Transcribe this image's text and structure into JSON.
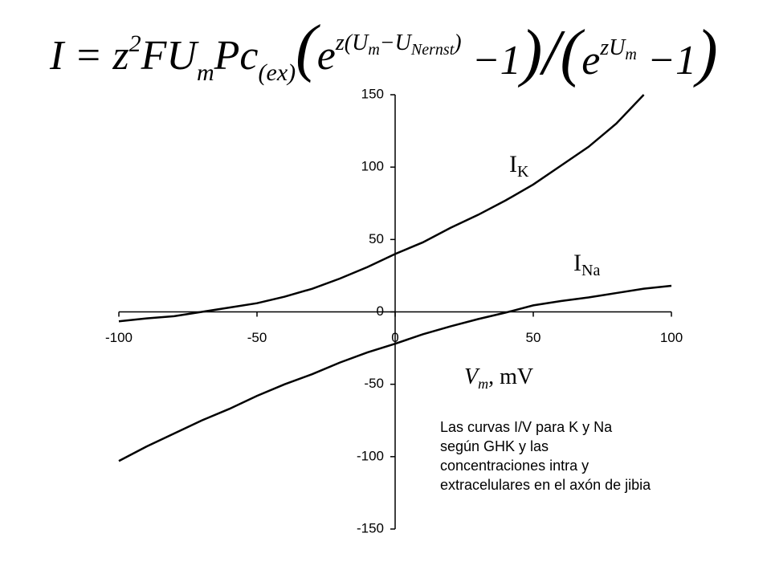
{
  "formula": [
    "I",
    " = ",
    "z",
    "2",
    "FU",
    "m",
    "Pc",
    "(ex)",
    "(",
    "e",
    "z(U",
    "m",
    "−U",
    "Nernst",
    ")",
    " −1",
    ")/(",
    "e",
    "zU",
    "m",
    " −1",
    ")"
  ],
  "chart_data": {
    "type": "line",
    "x": [
      -100,
      -90,
      -80,
      -70,
      -60,
      -50,
      -40,
      -30,
      -20,
      -10,
      0,
      10,
      20,
      30,
      40,
      50,
      60,
      70,
      80,
      90,
      100
    ],
    "series": [
      {
        "name": [
          "I",
          "K"
        ],
        "color": "#000000",
        "values": [
          -6.5,
          -4.5,
          -3,
          0,
          3,
          6,
          10.5,
          16,
          23,
          31,
          40,
          48,
          58,
          67,
          77,
          88,
          101,
          114,
          130,
          150,
          null
        ]
      },
      {
        "name": [
          "I",
          "Na"
        ],
        "color": "#000000",
        "values": [
          -103,
          -93,
          -84,
          -75,
          -67,
          -58,
          -50,
          -43,
          -35,
          -28,
          -22,
          -15.5,
          -10,
          -5,
          -0.5,
          4.5,
          7.5,
          10,
          13,
          16,
          18
        ]
      }
    ],
    "xlim": [
      -100,
      100
    ],
    "xticks": [
      -100,
      -50,
      0,
      50,
      100
    ],
    "ylim": [
      -150,
      150
    ],
    "yticks": [
      -150,
      -100,
      -50,
      0,
      50,
      100,
      150
    ],
    "xlabel": [
      "V",
      "m",
      ", mV"
    ],
    "annotation": [
      "Las curvas I/V para K y Na",
      "según GHK y  las",
      "concentraciones intra y",
      "extracelulares en el axón de jibia"
    ]
  }
}
